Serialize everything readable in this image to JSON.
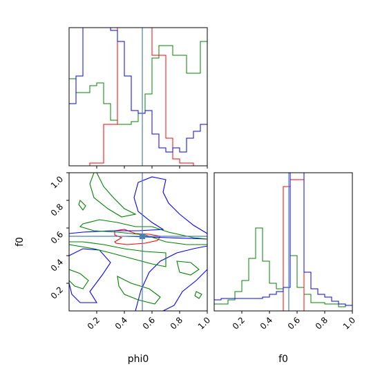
{
  "chart_data": {
    "type": "corner",
    "params": [
      "phi0",
      "f0"
    ],
    "xlabels": [
      "phi0",
      "f0"
    ],
    "ylabel": "f0",
    "truth": {
      "phi0": 0.53,
      "f0": 0.54,
      "color": "#4a7fb0"
    },
    "colors": {
      "green": "#008000",
      "red": "#ff0000",
      "blue": "#0000ff",
      "truth": "#4a7fb0"
    },
    "ticks": {
      "phi0": [
        "0.2",
        "0.4",
        "0.6",
        "0.8",
        "1.0"
      ],
      "f0": [
        "0.2",
        "0.4",
        "0.6",
        "0.8",
        "1.0"
      ]
    },
    "charts": [
      {
        "panel": "phi0-histogram",
        "type": "step-histogram",
        "xlim": [
          0,
          1
        ],
        "ylim": [
          0,
          1
        ],
        "bin_edges": [
          0,
          0.05,
          0.1,
          0.15,
          0.2,
          0.25,
          0.3,
          0.35,
          0.4,
          0.45,
          0.5,
          0.55,
          0.6,
          0.65,
          0.7,
          0.75,
          0.8,
          0.85,
          0.9,
          0.95,
          1.0
        ],
        "series": [
          {
            "color": "green",
            "values": [
              0.63,
              0.53,
              0.53,
              0.58,
              0.6,
              0.45,
              0.33,
              0.3,
              0.3,
              0.32,
              0.38,
              0.52,
              0.78,
              0.87,
              0.87,
              0.8,
              0.8,
              0.67,
              0.67,
              0.9
            ]
          },
          {
            "color": "red",
            "values": [
              0,
              0,
              0,
              0.02,
              0.02,
              0.3,
              0.3,
              1.0,
              1.0,
              1.0,
              1.0,
              1.0,
              0.8,
              0.8,
              0.2,
              0.05,
              0.02,
              0.02,
              0,
              0
            ]
          },
          {
            "color": "blue",
            "values": [
              0.45,
              0.65,
              1.0,
              1.0,
              1.0,
              1.0,
              0.98,
              0.9,
              0.65,
              0.4,
              0.38,
              0.4,
              0.23,
              0.13,
              0.1,
              0.13,
              0.1,
              0.2,
              0.25,
              0.3
            ]
          }
        ]
      },
      {
        "panel": "f0-histogram",
        "type": "step-histogram",
        "xlim": [
          0,
          1
        ],
        "ylim": [
          0,
          1
        ],
        "bin_edges": [
          0,
          0.05,
          0.1,
          0.15,
          0.2,
          0.25,
          0.3,
          0.35,
          0.4,
          0.45,
          0.5,
          0.55,
          0.6,
          0.65,
          0.7,
          0.75,
          0.8,
          0.85,
          0.9,
          0.95,
          1.0
        ],
        "series": [
          {
            "color": "green",
            "values": [
              0.05,
              0.05,
              0.08,
              0.14,
              0.22,
              0.38,
              0.6,
              0.36,
              0.2,
              0.16,
              0.9,
              0.4,
              0.17,
              0.12,
              0.06,
              0.06,
              0.05,
              0.05,
              0.03,
              0.04
            ]
          },
          {
            "color": "red",
            "values": [
              0,
              0,
              0,
              0,
              0,
              0,
              0,
              0,
              0,
              0,
              0.9,
              0.95,
              0.95,
              0,
              0,
              0,
              0,
              0,
              0,
              0
            ]
          },
          {
            "color": "blue",
            "values": [
              0.08,
              0.09,
              0.09,
              0.09,
              0.09,
              0.09,
              0.09,
              0.1,
              0.12,
              0.14,
              0.17,
              1.0,
              1.0,
              0.28,
              0.16,
              0.12,
              0.1,
              0.07,
              0.05,
              0.04
            ]
          }
        ]
      },
      {
        "panel": "phi0-vs-f0-contours",
        "type": "contour",
        "xlim": [
          0,
          1
        ],
        "ylim": [
          0,
          1
        ],
        "contours": [
          {
            "color": "red",
            "points": [
              [
                0.33,
                0.58
              ],
              [
                0.4,
                0.59
              ],
              [
                0.48,
                0.56
              ],
              [
                0.58,
                0.555
              ],
              [
                0.66,
                0.54
              ],
              [
                0.64,
                0.51
              ],
              [
                0.55,
                0.49
              ],
              [
                0.42,
                0.48
              ],
              [
                0.34,
                0.49
              ],
              [
                0.33,
                0.5
              ],
              [
                0.38,
                0.53
              ],
              [
                0.33,
                0.55
              ]
            ]
          },
          {
            "color": "blue",
            "points": [
              [
                0.0,
                0.54
              ],
              [
                0.4,
                0.54
              ],
              [
                0.72,
                0.53
              ],
              [
                1.0,
                0.52
              ],
              [
                1.0,
                0.56
              ],
              [
                0.9,
                0.62
              ],
              [
                0.8,
                0.7
              ],
              [
                0.72,
                0.78
              ],
              [
                0.68,
                0.86
              ],
              [
                0.7,
                0.95
              ],
              [
                0.6,
                0.97
              ],
              [
                0.5,
                0.93
              ],
              [
                0.47,
                0.82
              ],
              [
                0.5,
                0.72
              ],
              [
                0.6,
                0.64
              ],
              [
                0.68,
                0.59
              ],
              [
                0.5,
                0.58
              ],
              [
                0.3,
                0.58
              ],
              [
                0.1,
                0.57
              ],
              [
                0.0,
                0.56
              ]
            ]
          },
          {
            "color": "blue",
            "points": [
              [
                0.0,
                0.4
              ],
              [
                0.1,
                0.45
              ],
              [
                0.22,
                0.44
              ],
              [
                0.3,
                0.35
              ],
              [
                0.24,
                0.26
              ],
              [
                0.15,
                0.14
              ],
              [
                0.2,
                0.06
              ],
              [
                0.08,
                0.06
              ],
              [
                0.02,
                0.12
              ],
              [
                0.0,
                0.2
              ]
            ]
          },
          {
            "color": "blue",
            "points": [
              [
                0.48,
                0.0
              ],
              [
                0.52,
                0.15
              ],
              [
                0.58,
                0.28
              ],
              [
                0.66,
                0.36
              ],
              [
                0.78,
                0.42
              ],
              [
                0.9,
                0.45
              ],
              [
                1.0,
                0.47
              ],
              [
                1.0,
                0.3
              ],
              [
                0.92,
                0.22
              ],
              [
                0.82,
                0.14
              ],
              [
                0.76,
                0.04
              ],
              [
                0.68,
                0.0
              ]
            ]
          },
          {
            "color": "green",
            "points": [
              [
                0.1,
                0.63
              ],
              [
                0.22,
                0.66
              ],
              [
                0.35,
                0.64
              ],
              [
                0.48,
                0.61
              ],
              [
                0.6,
                0.61
              ],
              [
                0.72,
                0.57
              ],
              [
                0.9,
                0.53
              ],
              [
                1.0,
                0.52
              ],
              [
                1.0,
                0.48
              ],
              [
                0.85,
                0.48
              ],
              [
                0.7,
                0.5
              ],
              [
                0.55,
                0.55
              ],
              [
                0.35,
                0.57
              ],
              [
                0.18,
                0.58
              ],
              [
                0.08,
                0.61
              ]
            ]
          },
          {
            "color": "green",
            "points": [
              [
                0.0,
                0.48
              ],
              [
                0.18,
                0.45
              ],
              [
                0.3,
                0.42
              ],
              [
                0.45,
                0.38
              ],
              [
                0.6,
                0.34
              ],
              [
                0.7,
                0.32
              ],
              [
                0.7,
                0.42
              ],
              [
                0.55,
                0.43
              ],
              [
                0.4,
                0.45
              ],
              [
                0.25,
                0.48
              ],
              [
                0.1,
                0.5
              ],
              [
                0.0,
                0.5
              ]
            ]
          },
          {
            "color": "green",
            "points": [
              [
                0.2,
                1.0
              ],
              [
                0.25,
                0.9
              ],
              [
                0.32,
                0.82
              ],
              [
                0.4,
                0.74
              ],
              [
                0.48,
                0.7
              ],
              [
                0.38,
                0.68
              ],
              [
                0.28,
                0.74
              ],
              [
                0.18,
                0.82
              ],
              [
                0.15,
                0.92
              ],
              [
                0.18,
                1.0
              ]
            ]
          },
          {
            "color": "green",
            "points": [
              [
                0.35,
                0.25
              ],
              [
                0.45,
                0.2
              ],
              [
                0.58,
                0.16
              ],
              [
                0.66,
                0.1
              ],
              [
                0.62,
                0.05
              ],
              [
                0.5,
                0.08
              ],
              [
                0.4,
                0.12
              ],
              [
                0.36,
                0.18
              ]
            ]
          },
          {
            "color": "green",
            "points": [
              [
                0.0,
                0.3
              ],
              [
                0.08,
                0.27
              ],
              [
                0.14,
                0.22
              ],
              [
                0.1,
                0.16
              ],
              [
                0.04,
                0.18
              ],
              [
                0.0,
                0.22
              ]
            ]
          },
          {
            "color": "green",
            "points": [
              [
                0.78,
                0.36
              ],
              [
                0.88,
                0.35
              ],
              [
                0.94,
                0.3
              ],
              [
                0.88,
                0.26
              ],
              [
                0.8,
                0.28
              ]
            ]
          },
          {
            "color": "green",
            "points": [
              [
                0.08,
                0.8
              ],
              [
                0.12,
                0.76
              ],
              [
                0.1,
                0.73
              ],
              [
                0.07,
                0.77
              ]
            ]
          },
          {
            "color": "green",
            "points": [
              [
                0.92,
                0.14
              ],
              [
                0.96,
                0.12
              ],
              [
                0.94,
                0.09
              ],
              [
                0.91,
                0.11
              ]
            ]
          }
        ]
      }
    ]
  }
}
